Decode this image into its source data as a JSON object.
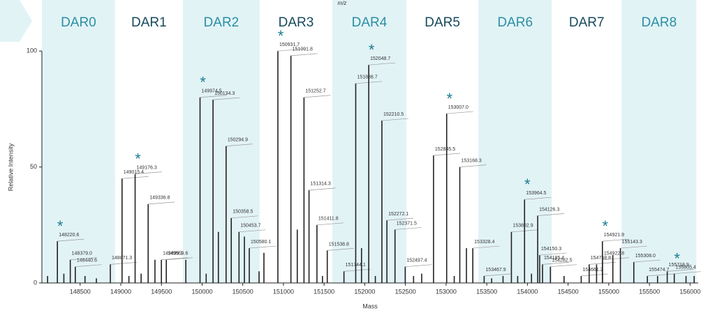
{
  "chart_data": {
    "type": "spectrum",
    "top_label": "m/z",
    "xlabel": "Mass",
    "ylabel": "Relative Intensity",
    "xlim": [
      148030,
      156100
    ],
    "ylim": [
      0,
      122
    ],
    "xticks": [
      148500,
      149000,
      149500,
      150000,
      150500,
      151000,
      151500,
      152000,
      152500,
      153000,
      153500,
      154000,
      154500,
      155000,
      155500,
      156000
    ],
    "yticks": [
      0,
      50,
      100
    ],
    "regions": [
      {
        "label": "DAR0",
        "range": [
          148030,
          148930
        ],
        "shaded": true
      },
      {
        "label": "DAR1",
        "range": [
          148930,
          149763
        ],
        "shaded": false
      },
      {
        "label": "DAR2",
        "range": [
          149763,
          150708
        ],
        "shaded": true
      },
      {
        "label": "DAR3",
        "range": [
          150708,
          151601
        ],
        "shaded": false
      },
      {
        "label": "DAR4",
        "range": [
          151601,
          152512
        ],
        "shaded": true
      },
      {
        "label": "DAR5",
        "range": [
          152512,
          153397
        ],
        "shaded": false
      },
      {
        "label": "DAR6",
        "range": [
          153397,
          154299
        ],
        "shaded": true
      },
      {
        "label": "DAR7",
        "range": [
          154299,
          155158
        ],
        "shaded": false
      },
      {
        "label": "DAR8",
        "range": [
          155158,
          156077
        ],
        "shaded": true
      }
    ],
    "shade_color": "#e2f3f6",
    "shaded_label_color": "#2b8fa3",
    "plain_label_color": "#174a5c",
    "marker_symbol": "*",
    "marker_color": "#1b7d90",
    "series": [
      {
        "color": "#222222",
        "x": [
          148220.6,
          148379.0,
          148440.6,
          148871.3,
          149015.4,
          149176.3,
          149336.8,
          149499.1,
          149559.6,
          149974.5,
          150134.3,
          150294.9,
          150358.5,
          150453.7,
          150580.1,
          150931.7,
          151091.8,
          151252.7,
          151314.3,
          151411.8,
          151538.8,
          151744.1,
          151888.7,
          152048.7,
          152210.5,
          152272.1,
          152371.5,
          152497.4,
          152845.5,
          153007.0,
          153168.3,
          153328.4,
          153467.9,
          153802.9,
          153964.5,
          154126.3,
          154150.3,
          154185.4,
          154282.5,
          154661.2,
          154758.8,
          154922.8,
          154921.9,
          155143.3,
          155308.0,
          155474.7,
          155718.9,
          155805.4
        ],
        "point_labels": [
          "148220.6",
          "148379.0",
          "148440.6",
          "148871.3",
          "149015.4",
          "149176.3",
          "149336.8",
          "149499.1",
          "149559.6",
          "149974.5",
          "150134.3",
          "150294.9",
          "150358.5",
          "150453.7",
          "150580.1",
          "150931.7",
          "151091.8",
          "151252.7",
          "151314.3",
          "151411.8",
          "151538.8",
          "151744.1",
          "151888.7",
          "152048.7",
          "152210.5",
          "152272.1",
          "152371.5",
          "152497.4",
          "152845.5",
          "153007.0",
          "153168.3",
          "153328.4",
          "153467.9",
          "153802.9",
          "153964.5",
          "154126.3",
          "154150.3",
          "154185.4",
          "154282.5",
          "154661.2",
          "154758.8",
          "154922.8",
          "154921.9",
          "155143.3",
          "155308.0",
          "155474.7",
          "155718.9",
          "155805.4"
        ],
        "values": [
          18,
          10,
          7,
          8,
          45,
          47,
          34,
          10,
          10,
          80,
          79,
          59,
          28,
          22,
          15,
          100,
          98,
          80,
          40,
          25,
          14,
          5,
          86,
          94,
          70,
          27,
          23,
          7,
          55,
          73,
          50,
          15,
          3,
          22,
          36,
          29,
          12,
          8,
          7,
          3,
          8,
          10,
          18,
          15,
          9,
          3,
          5,
          4
        ],
        "starred": [
          0,
          5,
          9,
          15,
          23,
          29,
          34,
          42,
          47
        ]
      },
      {
        "color": "#222222",
        "x": [
          148100,
          148300,
          148560,
          148700,
          149100,
          149250,
          149420,
          149800,
          150050,
          150200,
          150520,
          150700,
          150760,
          151170,
          151480,
          151960,
          152130,
          152600,
          152700,
          153100,
          153250,
          153560,
          153700,
          153880,
          154050,
          154450,
          154850,
          155050,
          155600,
          155950,
          156050
        ],
        "values": [
          3,
          4,
          3,
          2,
          3,
          4,
          10,
          10,
          4,
          22,
          20,
          5,
          13,
          23,
          3,
          15,
          3,
          3,
          4,
          3,
          15,
          2,
          3,
          3,
          4,
          3,
          8,
          12,
          3,
          3,
          3
        ]
      }
    ]
  }
}
